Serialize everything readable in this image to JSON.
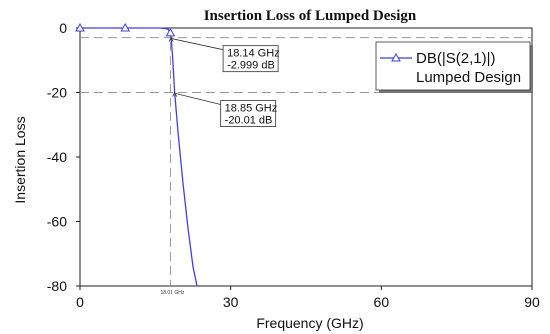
{
  "chart_data": {
    "type": "line",
    "title": "Insertion Loss of Lumped Design",
    "xlabel": "Frequency (GHz)",
    "ylabel": "Insertion Loss",
    "xlim": [
      0,
      90
    ],
    "ylim": [
      -80,
      0
    ],
    "xticks": [
      0,
      30,
      60,
      90
    ],
    "yticks": [
      0,
      -20,
      -40,
      -60,
      -80
    ],
    "series": [
      {
        "name": "DB(|S(2,1)|)",
        "subtitle": "Lumped Design",
        "color": "#3f3fe6",
        "x": [
          0,
          4,
          8,
          12,
          16,
          17.5,
          18.0,
          18.14,
          18.4,
          18.85,
          19.5,
          20.5,
          21.5,
          22.5,
          23.3
        ],
        "y": [
          0,
          0,
          0,
          0,
          0,
          -0.3,
          -1.5,
          -2.999,
          -8,
          -20.01,
          -32,
          -48,
          -62,
          -74,
          -80
        ],
        "marker_x": [
          0,
          9,
          18
        ]
      }
    ],
    "markers": [
      {
        "freq_label": "18.14 GHz",
        "value_label": "-2.999 dB",
        "x": 18.14,
        "y": -2.999
      },
      {
        "freq_label": "18.85 GHz",
        "value_label": "-20.01 dB",
        "x": 18.85,
        "y": -20.01
      }
    ],
    "hlines": [
      -2.999,
      -20.01
    ],
    "vline": {
      "x": 18.01,
      "label": "18.01 GHz"
    },
    "grid": false,
    "legend_position": "top-right"
  }
}
